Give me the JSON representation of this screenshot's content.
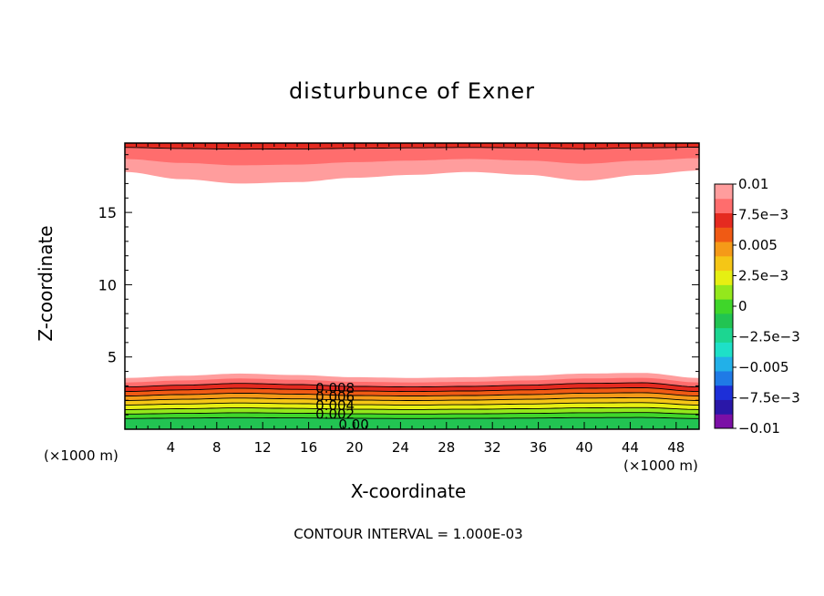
{
  "chart_data": {
    "type": "contour",
    "title": "disturbunce of Exner",
    "xlabel": "X-coordinate",
    "ylabel": "Z-coordinate",
    "x_unit_label": "(×1000 m)",
    "xlim": [
      0,
      50
    ],
    "ylim": [
      0,
      19.8
    ],
    "x_ticks": [
      4,
      8,
      12,
      16,
      20,
      24,
      28,
      32,
      36,
      40,
      44,
      48
    ],
    "y_ticks": [
      5,
      10,
      15
    ],
    "colorbar": {
      "labels": [
        "0.01",
        "7.5e−3",
        "0.005",
        "2.5e−3",
        "0",
        "−2.5e−3",
        "−0.005",
        "−7.5e−3",
        "−0.01"
      ],
      "min": -0.01,
      "max": 0.01,
      "step": 0.00125,
      "colors": [
        "#7b0fa6",
        "#2a17a8",
        "#1d2fd8",
        "#1f7ae6",
        "#22b0e8",
        "#1ee0c8",
        "#1cd691",
        "#22c452",
        "#3fd62a",
        "#94e81c",
        "#e6ef12",
        "#f5c616",
        "#f59a18",
        "#f05a14",
        "#e52a20",
        "#ff6d6d",
        "#ff9d9d"
      ]
    },
    "contour_labels": [
      "0.008",
      "0.006",
      "0.004",
      "0.002",
      "0.00"
    ],
    "contour_interval_text": "CONTOUR INTERVAL = 1.000E-03",
    "bottom_layer": {
      "x": [
        0,
        5,
        10,
        15,
        20,
        25,
        30,
        35,
        40,
        45,
        50
      ],
      "top_z": [
        3.55,
        3.7,
        3.85,
        3.75,
        3.6,
        3.55,
        3.6,
        3.7,
        3.85,
        3.9,
        3.55
      ]
    },
    "top_layer": {
      "x": [
        0,
        5,
        10,
        15,
        20,
        25,
        30,
        35,
        40,
        45,
        50
      ],
      "bottom_z": [
        17.8,
        17.3,
        17.0,
        17.1,
        17.4,
        17.6,
        17.8,
        17.6,
        17.2,
        17.6,
        17.9
      ]
    }
  }
}
